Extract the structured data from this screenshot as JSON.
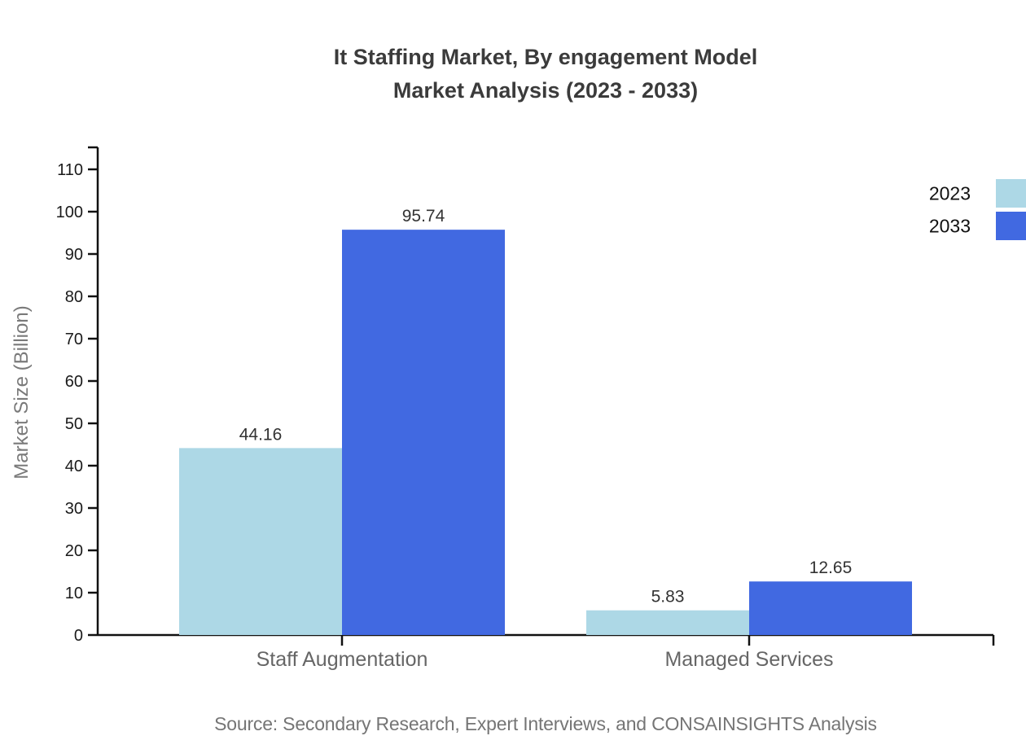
{
  "chart_data": {
    "type": "bar",
    "title": "It Staffing Market, By engagement Model",
    "subtitle": "Market Analysis (2023 - 2033)",
    "categories": [
      "Staff Augmentation",
      "Managed Services"
    ],
    "series": [
      {
        "name": "2023",
        "color": "#ADD8E6",
        "values": [
          44.16,
          5.83
        ]
      },
      {
        "name": "2033",
        "color": "#4169E1",
        "values": [
          95.74,
          12.65
        ]
      }
    ],
    "xlabel": "",
    "ylabel": "Market Size (Billion)",
    "ylim": [
      0,
      110
    ],
    "ytick_step": 10,
    "grid": false,
    "legend_position": "top-right",
    "value_labels": true,
    "source": "Source: Secondary Research, Expert Interviews, and CONSAINSIGHTS Analysis"
  }
}
